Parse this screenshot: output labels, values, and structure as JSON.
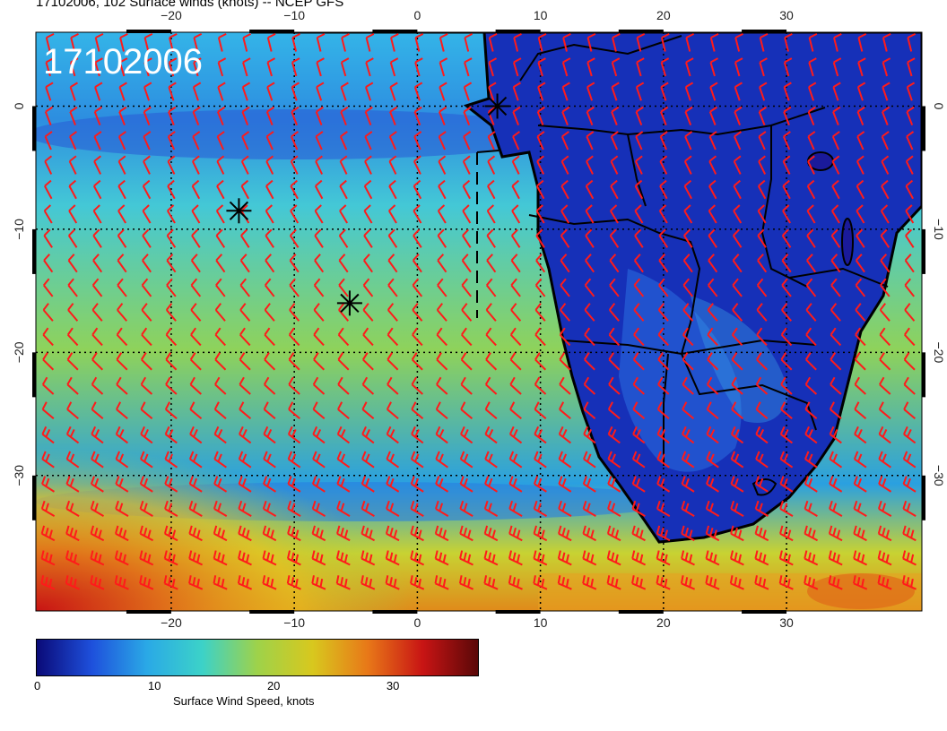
{
  "title": "17102006, 102 Surface winds (knots) -- NCEP GFS",
  "date_stamp": "17102006",
  "map": {
    "region": "South Atlantic Ocean and Southern Africa",
    "projection": "lat-lon",
    "lon_range": [
      -31,
      41
    ],
    "lat_range": [
      -41,
      6
    ],
    "lon_ticks": [
      -20,
      -10,
      0,
      10,
      20,
      30
    ],
    "lat_ticks": [
      0,
      -10,
      -20,
      -30
    ],
    "gridlines": "dotted",
    "wind_barb_color": "#ff1a1a",
    "coastline_color": "#000000",
    "markers": [
      {
        "symbol": "asterisk",
        "lon": -14.5,
        "lat": -8.5
      },
      {
        "symbol": "asterisk",
        "lon": -5.5,
        "lat": -16
      },
      {
        "symbol": "asterisk",
        "lon": 6.5,
        "lat": 0
      }
    ]
  },
  "colorbar": {
    "label": "Surface Wind Speed, knots",
    "ticks": [
      "0",
      "10",
      "20",
      "30"
    ],
    "tick_values": [
      0,
      10,
      20,
      30
    ],
    "range": [
      0,
      37
    ],
    "colors": [
      "#0a0a78",
      "#1e50dc",
      "#2aa9e6",
      "#3cd2c8",
      "#9ed24a",
      "#d8c81e",
      "#e87818",
      "#c81414",
      "#5a0808"
    ]
  }
}
